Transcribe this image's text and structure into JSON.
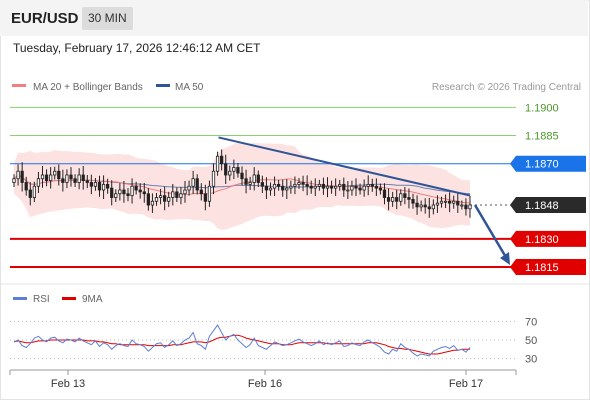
{
  "header": {
    "pair": "EUR/USD",
    "timeframe": "30 MIN",
    "timestamp": "Tuesday, February 17, 2026 12:46:12 AM CET"
  },
  "legend": {
    "bollinger": "MA 20 + Bollinger Bands",
    "ma50": "MA 50",
    "source": "Research © 2026 Trading Central",
    "rsi": "RSI",
    "ma9": "9MA"
  },
  "colors": {
    "candle_up": "#222222",
    "candle_down": "#222222",
    "bollinger_fill": "#fde2e2",
    "ma20": "#f08080",
    "ma50": "#2f5597",
    "resistance_green": "#8ccf6e",
    "pivot_blue": "#1a73e8",
    "support_red": "#e00000",
    "trend_arrow": "#2f5597",
    "rsi": "#5b7fd6",
    "rsi_ma": "#e00000"
  },
  "chart_data": [
    {
      "type": "candlestick",
      "title": "EUR/USD 30 MIN",
      "ylim": [
        1.1807,
        1.1905
      ],
      "x_ticks": [
        "Feb 13",
        "Feb 16",
        "Feb 17"
      ],
      "levels": [
        {
          "label": "1.1900",
          "value": 1.19,
          "kind": "resistance"
        },
        {
          "label": "1.1885",
          "value": 1.1885,
          "kind": "resistance"
        },
        {
          "label": "1.1870",
          "value": 1.187,
          "kind": "pivot"
        },
        {
          "label": "1.1848",
          "value": 1.1848,
          "kind": "last"
        },
        {
          "label": "1.1830",
          "value": 1.183,
          "kind": "support"
        },
        {
          "label": "1.1815",
          "value": 1.1815,
          "kind": "support"
        }
      ],
      "candles_close": [
        1.1862,
        1.1866,
        1.186,
        1.1856,
        1.1852,
        1.1858,
        1.1862,
        1.1864,
        1.1861,
        1.1864,
        1.1866,
        1.1862,
        1.186,
        1.1864,
        1.1862,
        1.186,
        1.1864,
        1.1861,
        1.186,
        1.1858,
        1.186,
        1.1856,
        1.1859,
        1.1857,
        1.1852,
        1.1854,
        1.1856,
        1.1854,
        1.1853,
        1.1858,
        1.1856,
        1.1855,
        1.1854,
        1.1848,
        1.185,
        1.1852,
        1.1853,
        1.185,
        1.1852,
        1.1855,
        1.1852,
        1.1854,
        1.1856,
        1.1858,
        1.1862,
        1.1856,
        1.1854,
        1.185,
        1.1858,
        1.1866,
        1.1874,
        1.187,
        1.1864,
        1.1866,
        1.1868,
        1.1865,
        1.1862,
        1.1859,
        1.186,
        1.1864,
        1.186,
        1.1858,
        1.1856,
        1.1857,
        1.1859,
        1.1858,
        1.1856,
        1.1857,
        1.1858,
        1.1859,
        1.186,
        1.1859,
        1.1858,
        1.1857,
        1.1858,
        1.1859,
        1.1857,
        1.1858,
        1.1857,
        1.1858,
        1.1859,
        1.1856,
        1.1856,
        1.1858,
        1.1857,
        1.1856,
        1.1858,
        1.1859,
        1.1858,
        1.1857,
        1.1856,
        1.1852,
        1.185,
        1.1852,
        1.185,
        1.1854,
        1.1852,
        1.1851,
        1.1849,
        1.1847,
        1.1848,
        1.1847,
        1.1846,
        1.1848,
        1.1849,
        1.185,
        1.185,
        1.1849,
        1.185,
        1.1848,
        1.1848,
        1.1846,
        1.1848
      ],
      "trendline": {
        "from": [
          "Feb 16 02:00",
          1.1884
        ],
        "to": [
          "Feb 17 00:30",
          1.1852
        ]
      },
      "projection": {
        "from": 1.1848,
        "to": 1.1815
      }
    },
    {
      "type": "line",
      "title": "RSI",
      "ylim": [
        20,
        80
      ],
      "y_ticks": [
        70,
        50,
        30
      ],
      "series": [
        {
          "name": "RSI",
          "values": [
            48,
            50,
            44,
            42,
            46,
            52,
            54,
            50,
            48,
            52,
            53,
            49,
            47,
            51,
            50,
            48,
            52,
            49,
            47,
            45,
            49,
            43,
            47,
            45,
            40,
            44,
            46,
            44,
            43,
            50,
            46,
            45,
            43,
            38,
            42,
            46,
            47,
            42,
            45,
            49,
            44,
            46,
            50,
            52,
            58,
            46,
            44,
            40,
            54,
            60,
            66,
            58,
            50,
            54,
            56,
            50,
            46,
            42,
            45,
            52,
            44,
            42,
            40,
            44,
            48,
            46,
            44,
            45,
            47,
            49,
            51,
            48,
            46,
            44,
            46,
            49,
            45,
            47,
            45,
            47,
            49,
            43,
            44,
            47,
            45,
            44,
            48,
            50,
            47,
            45,
            42,
            37,
            35,
            40,
            38,
            46,
            42,
            40,
            36,
            33,
            35,
            34,
            33,
            38,
            40,
            42,
            43,
            41,
            44,
            39,
            40,
            37,
            42
          ]
        },
        {
          "name": "9MA",
          "values": [
            48,
            49,
            48,
            47,
            47,
            48,
            49,
            49,
            49,
            50,
            50,
            50,
            50,
            50,
            50,
            50,
            50,
            50,
            49,
            49,
            49,
            48,
            48,
            47,
            46,
            46,
            45,
            45,
            45,
            45,
            45,
            45,
            45,
            44,
            44,
            44,
            44,
            44,
            44,
            45,
            45,
            45,
            46,
            47,
            48,
            48,
            48,
            47,
            48,
            50,
            52,
            53,
            53,
            54,
            55,
            55,
            54,
            52,
            51,
            50,
            49,
            48,
            47,
            46,
            46,
            46,
            45,
            45,
            45,
            46,
            47,
            47,
            47,
            47,
            47,
            47,
            47,
            46,
            46,
            46,
            46,
            46,
            46,
            46,
            46,
            46,
            46,
            47,
            47,
            47,
            46,
            45,
            43,
            42,
            41,
            41,
            40,
            40,
            39,
            38,
            37,
            36,
            35,
            35,
            35,
            36,
            37,
            38,
            39,
            39,
            40,
            40,
            40
          ]
        }
      ]
    }
  ]
}
